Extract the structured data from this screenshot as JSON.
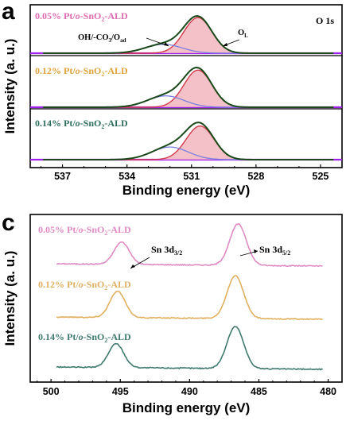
{
  "chart_data": [
    {
      "type": "line",
      "panel": "a",
      "xlabel": "Binding energy (eV)",
      "ylabel": "Intensity (a. u.)",
      "xlim": [
        538.5,
        524.0
      ],
      "xticks": [
        537,
        534,
        531,
        528,
        525
      ],
      "xtick_labels": [
        "537",
        "534",
        "531",
        "528",
        "525"
      ],
      "corner_label": "O 1s",
      "annotations": [
        {
          "text": "OH/-CO3/Oad"
        },
        {
          "text": "OL"
        }
      ],
      "series": [
        {
          "name": "0.05% Pt/o-SnO2-ALD",
          "name_parts": [
            "0.05% Pt/",
            "o",
            "-SnO",
            "2",
            "-ALD"
          ],
          "label_color": "#e06bb0",
          "ol_peak": 530.7,
          "oh_peak": 532.3
        },
        {
          "name": "0.12% Pt/o-SnO2-ALD",
          "name_parts": [
            "0.12% Pt/",
            "o",
            "-SnO",
            "2",
            "-ALD"
          ],
          "label_color": "#e0a23a",
          "ol_peak": 530.7,
          "oh_peak": 532.2
        },
        {
          "name": "0.14% Pt/o-SnO2-ALD",
          "name_parts": [
            "0.14% Pt/",
            "o",
            "-SnO",
            "2",
            "-ALD"
          ],
          "label_color": "#2e6e5e",
          "ol_peak": 530.6,
          "oh_peak": 532.0
        }
      ],
      "colors": {
        "envelope": "#1a4a1a",
        "raw": "#000000",
        "ol_fill": "#f2b6be",
        "ol_line": "#d23a4a",
        "oh_line": "#7b7fe0",
        "baseline": "#a020f0"
      }
    },
    {
      "type": "line",
      "panel": "c",
      "xlabel": "Binding energy (eV)",
      "ylabel": "Intensity (a. u.)",
      "xlim": [
        501.5,
        479.0
      ],
      "xticks": [
        500,
        495,
        490,
        485,
        480
      ],
      "xtick_labels": [
        "500",
        "495",
        "490",
        "485",
        "480"
      ],
      "annotations": [
        {
          "text": "Sn 3d3/2",
          "main": "Sn 3d",
          "sub": "3/2"
        },
        {
          "text": "Sn 3d5/2",
          "main": "Sn 3d",
          "sub": "5/2"
        }
      ],
      "series": [
        {
          "name": "0.05% Pt/o-SnO2-ALD",
          "name_parts": [
            "0.05% Pt/",
            "o",
            "-SnO",
            "2",
            "-ALD"
          ],
          "color": "#e08ac4",
          "peaks": [
            494.9,
            486.5
          ]
        },
        {
          "name": "0.12% Pt/o-SnO2-ALD",
          "name_parts": [
            "0.12% Pt/",
            "o",
            "-SnO",
            "2",
            "-ALD"
          ],
          "color": "#e0b060",
          "peaks": [
            495.2,
            486.7
          ]
        },
        {
          "name": "0.14% Pt/o-SnO2-ALD",
          "name_parts": [
            "0.14% Pt/",
            "o",
            "-SnO",
            "2",
            "-ALD"
          ],
          "color": "#3e7a6e",
          "peaks": [
            495.3,
            486.7
          ]
        }
      ]
    }
  ]
}
